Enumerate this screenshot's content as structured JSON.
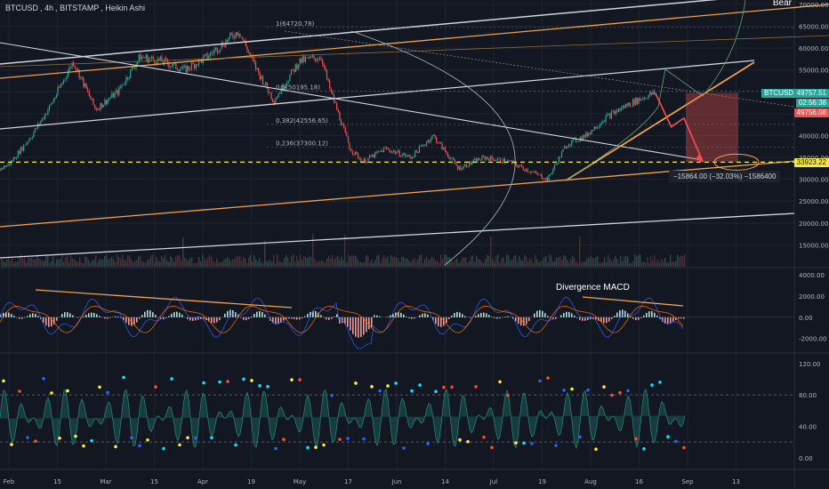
{
  "header": {
    "symbol": "BTCUSD",
    "interval": "4h",
    "exchange": "BITSTAMP",
    "chart_style": "Heikin Ashi"
  },
  "corner_text": "Bear",
  "price_tags": {
    "symbol_tag": "BTCUSD",
    "last_price": "49757.51",
    "countdown": "02:56:38",
    "target_price": "49756.08",
    "level_price": "33923.22"
  },
  "annotations": {
    "divergence": "Divergence MACD",
    "measure": "−15864.00 (−32.03%) −1586400"
  },
  "fib_levels": [
    {
      "label": "1(64720.78)",
      "value": 64720
    },
    {
      "label": "0.5(50195.18)",
      "value": 50195
    },
    {
      "label": "0.382(42556.65)",
      "value": 42556
    },
    {
      "label": "0.236(37300.12)",
      "value": 37300
    }
  ],
  "colors": {
    "background": "#131722",
    "bull_candle": "#26a69a",
    "bear_candle": "#ef5350",
    "trendline_orange": "#f0a04b",
    "trendline_white": "#d1d4dc",
    "dashed_level": "#f7e93a"
  },
  "chart_data": [
    {
      "type": "candlestick",
      "title": "",
      "x_ticks": [
        "Feb",
        "15",
        "Mar",
        "15",
        "Apr",
        "19",
        "May",
        "17",
        "Jun",
        "14",
        "Jul",
        "19",
        "Aug",
        "16",
        "Sep",
        "13"
      ],
      "y_ticks": [
        15000,
        20000,
        25000,
        30000,
        35000,
        40000,
        45000,
        50000,
        55000,
        60000,
        65000,
        70000
      ],
      "y_tick_labels": [
        "15000.00",
        "20000.00",
        "25000.00",
        "30000.00",
        "35000.00",
        "40000.00",
        "45000.00",
        "50000.00",
        "55000.00",
        "60000.00",
        "65000.00",
        "70000.00"
      ],
      "ylim": [
        10000,
        71000
      ],
      "grid": true,
      "price_path": [
        [
          "Jan 28",
          32000
        ],
        [
          "Feb 01",
          33500
        ],
        [
          "Feb 08",
          40000
        ],
        [
          "Feb 14",
          47000
        ],
        [
          "Feb 21",
          57000
        ],
        [
          "Feb 28",
          46000
        ],
        [
          "Mar 07",
          50000
        ],
        [
          "Mar 14",
          58000
        ],
        [
          "Mar 21",
          57000
        ],
        [
          "Mar 28",
          55000
        ],
        [
          "Apr 04",
          58000
        ],
        [
          "Apr 14",
          64000
        ],
        [
          "Apr 19",
          56000
        ],
        [
          "Apr 25",
          48000
        ],
        [
          "May 03",
          57000
        ],
        [
          "May 10",
          58000
        ],
        [
          "May 12",
          52000
        ],
        [
          "May 19",
          37000
        ],
        [
          "May 23",
          34000
        ],
        [
          "May 30",
          37000
        ],
        [
          "Jun 07",
          35000
        ],
        [
          "Jun 14",
          40000
        ],
        [
          "Jun 22",
          32500
        ],
        [
          "Jun 30",
          35000
        ],
        [
          "Jul 08",
          34000
        ],
        [
          "Jul 20",
          30000
        ],
        [
          "Jul 26",
          38000
        ],
        [
          "Aug 01",
          40000
        ],
        [
          "Aug 07",
          44000
        ],
        [
          "Aug 14",
          47000
        ],
        [
          "Aug 20",
          49000
        ],
        [
          "Aug 23",
          49757
        ]
      ],
      "projection": [
        [
          "Aug 23",
          49757
        ],
        [
          "Aug 28",
          42000
        ],
        [
          "Sep 01",
          44000
        ],
        [
          "Sep 07",
          33923
        ]
      ],
      "horizontal_level": 33923,
      "volume_axis_note": "volume bars at bottom of price pane"
    },
    {
      "type": "line",
      "title": "",
      "indicator": "MACD",
      "y_ticks": [
        -2000,
        0,
        2000,
        4000
      ],
      "y_tick_labels": [
        "-2000.00",
        "0.00",
        "2000.00",
        "4000.00"
      ],
      "ylim": [
        -3200,
        4600
      ]
    },
    {
      "type": "line",
      "title": "",
      "indicator": "oscillator",
      "y_ticks": [
        0,
        40,
        80,
        120
      ],
      "y_tick_labels": [
        "0.00",
        "40.00",
        "80.00",
        "120.00"
      ],
      "ylim": [
        -15,
        130
      ],
      "reference_lines": [
        20,
        80
      ]
    }
  ]
}
